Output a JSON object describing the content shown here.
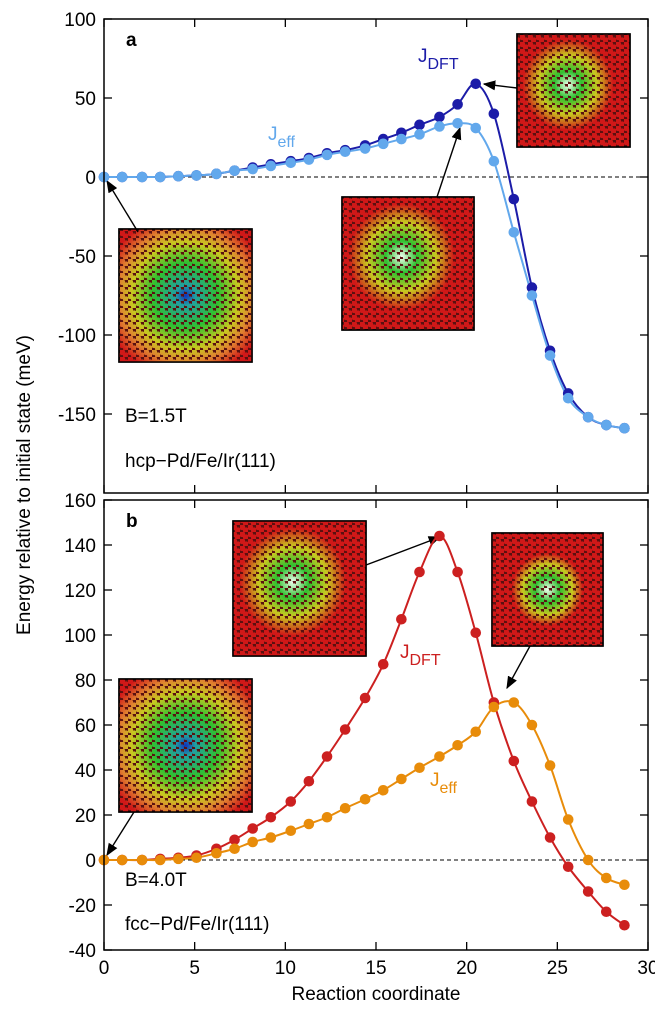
{
  "shared": {
    "ylabel": "Energy relative to initial state (meV)",
    "xlabel": "Reaction coordinate"
  },
  "chart_data": [
    {
      "type": "line",
      "panel": "a",
      "x": [
        0,
        1.0,
        2.1,
        3.1,
        4.1,
        5.1,
        6.2,
        7.2,
        8.2,
        9.2,
        10.3,
        11.3,
        12.3,
        13.3,
        14.4,
        15.4,
        16.4,
        17.4,
        18.5,
        19.5,
        20.5,
        21.5,
        22.6,
        23.6,
        24.6,
        25.6,
        26.7,
        27.7,
        28.7
      ],
      "series": [
        {
          "label": {
            "main": "J",
            "sub": "DFT"
          },
          "color": "#1c1ca8",
          "values": [
            0,
            0,
            0,
            0,
            0.5,
            1,
            2,
            4,
            6,
            8,
            10,
            12,
            15,
            17,
            20,
            24,
            28,
            33,
            38,
            46,
            59,
            40,
            -14,
            -70,
            -110,
            -137,
            -152,
            -157,
            -159
          ]
        },
        {
          "label": {
            "main": "J",
            "sub": "eff"
          },
          "color": "#62a8ec",
          "values": [
            0,
            0,
            0,
            0,
            0.5,
            1,
            2,
            4,
            5,
            7,
            9,
            11,
            14,
            16,
            18,
            21,
            24,
            27,
            32,
            34,
            31,
            10,
            -35,
            -75,
            -113,
            -140,
            -152,
            -157,
            -159
          ]
        }
      ],
      "xlim": [
        0,
        30
      ],
      "xticks": [
        0,
        5,
        10,
        15,
        20,
        25,
        30
      ],
      "show_xtick_labels": false,
      "ylim": [
        -200,
        100
      ],
      "yticks": [
        -150,
        -100,
        -50,
        0,
        50,
        100
      ],
      "zero_line": true,
      "annotations": {
        "field": "B=1.5T",
        "material": "hcp−Pd/Fe/Ir(111)"
      }
    },
    {
      "type": "line",
      "panel": "b",
      "x": [
        0,
        1.0,
        2.1,
        3.1,
        4.1,
        5.1,
        6.2,
        7.2,
        8.2,
        9.2,
        10.3,
        11.3,
        12.3,
        13.3,
        14.4,
        15.4,
        16.4,
        17.4,
        18.5,
        19.5,
        20.5,
        21.5,
        22.6,
        23.6,
        24.6,
        25.6,
        26.7,
        27.7,
        28.7
      ],
      "series": [
        {
          "label": {
            "main": "J",
            "sub": "DFT"
          },
          "color": "#cc2020",
          "values": [
            0,
            0,
            0,
            0.5,
            1,
            2,
            5,
            9,
            14,
            19,
            26,
            35,
            46,
            58,
            72,
            87,
            107,
            128,
            144,
            128,
            101,
            70,
            44,
            26,
            10,
            -3,
            -14,
            -23,
            -29
          ]
        },
        {
          "label": {
            "main": "J",
            "sub": "eff"
          },
          "color": "#e88c0a",
          "values": [
            0,
            0,
            0,
            0,
            0.5,
            1,
            3,
            5,
            8,
            10,
            13,
            16,
            19,
            23,
            27,
            31,
            36,
            41,
            46,
            51,
            57,
            68,
            70,
            60,
            42,
            18,
            0,
            -8,
            -11
          ]
        }
      ],
      "xlim": [
        0,
        30
      ],
      "xticks": [
        0,
        5,
        10,
        15,
        20,
        25,
        30
      ],
      "show_xtick_labels": true,
      "ylim": [
        -40,
        160
      ],
      "yticks": [
        -40,
        -20,
        0,
        20,
        40,
        60,
        80,
        100,
        120,
        140,
        160
      ],
      "zero_line": true,
      "annotations": {
        "field": "B=4.0T",
        "material": "fcc−Pd/Fe/Ir(111)"
      }
    }
  ]
}
